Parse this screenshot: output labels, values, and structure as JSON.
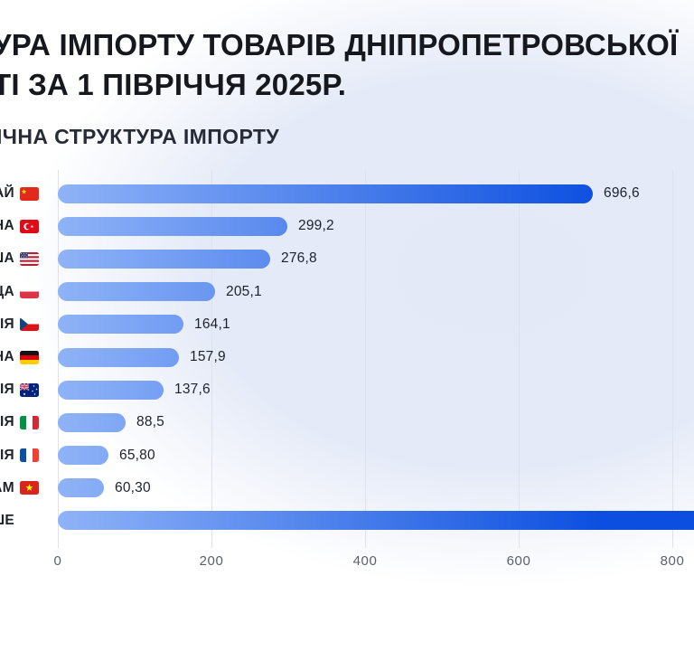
{
  "header": {
    "title_line1": "УРА ІМПОРТУ ТОВАРІВ ДНІПРОПЕТРОВСЬКОЇ",
    "title_line2": "ТІ ЗА 1 ПІВРІЧЧЯ 2025Р.",
    "subtitle": "ІЧНА СТРУКТУРА ІМПОРТУ"
  },
  "chart_data": {
    "type": "bar",
    "orientation": "horizontal",
    "title": "ІЧНА СТРУКТУРА ІМПОРТУ",
    "categories": [
      "АЙ",
      "НА",
      "ША",
      "ЩА",
      "ХІЯ",
      "НА",
      "ЛІЯ",
      "ЛІЯ",
      "ЦІЯ",
      "АМ",
      "ШЕ"
    ],
    "flags": [
      "china",
      "turkey",
      "usa",
      "poland",
      "czechia",
      "germany",
      "australia",
      "italy",
      "france",
      "vietnam",
      null
    ],
    "values": [
      696.6,
      299.2,
      276.8,
      205.1,
      164.1,
      157.9,
      137.6,
      88.5,
      65.8,
      60.3,
      null
    ],
    "value_labels": [
      "696,6",
      "299,2",
      "276,8",
      "205,1",
      "164,1",
      "157,9",
      "137,6",
      "88,5",
      "65,80",
      "60,30",
      ""
    ],
    "xlim": [
      0,
      800
    ],
    "x_ticks": [
      "0",
      "200",
      "400",
      "600",
      "800"
    ],
    "grid": "vertical",
    "legend": "none",
    "labels_truncated_left": true,
    "last_bar_clipped_right": true
  },
  "colors": {
    "title_text": "#16181e",
    "subtitle_text": "#262b35",
    "label_text": "#1e222b",
    "value_text": "#1d212a",
    "tick_text": "#5b6069",
    "gridline": "#dde2ec",
    "bar_gradient_start": "#8FB3F7",
    "bar_gradient_end": "#0C4FE0",
    "background_circle": "#e3e9f7",
    "page_background": "#ffffff"
  }
}
